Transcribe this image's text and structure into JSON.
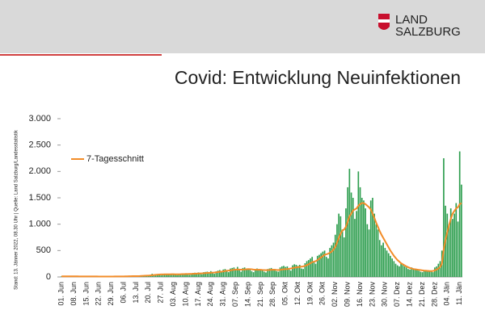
{
  "header": {
    "logo_line1": "LAND",
    "logo_line2": "SALZBURG"
  },
  "source_note": "Stand: 13. Jänner 2022, 08.30 Uhr | Quelle: Land Salzburg/Landesstatistik",
  "chart_data": {
    "type": "bar",
    "title": "Covid: Entwicklung Neuinfektionen",
    "ylim": [
      0,
      3000
    ],
    "yticks": [
      0,
      500,
      {
        "value": 1000,
        "label": "1.000"
      },
      {
        "value": 1500,
        "label": "1.500"
      },
      {
        "value": 2000,
        "label": "2.000"
      },
      {
        "value": 2500,
        "label": "2.500"
      },
      {
        "value": 3000,
        "label": "3.000"
      }
    ],
    "grid": false,
    "legend": "upper left",
    "categories": [
      "01. Jun",
      null,
      null,
      null,
      null,
      null,
      null,
      "08. Jun",
      null,
      null,
      null,
      null,
      null,
      null,
      "15. Jun",
      null,
      null,
      null,
      null,
      null,
      null,
      "22. Jun",
      null,
      null,
      null,
      null,
      null,
      null,
      "29. Jun",
      null,
      null,
      null,
      null,
      null,
      null,
      "06. Jul",
      null,
      null,
      null,
      null,
      null,
      null,
      "13. Jul",
      null,
      null,
      null,
      null,
      null,
      null,
      "20. Jul",
      null,
      null,
      null,
      null,
      null,
      null,
      "27. Jul",
      null,
      null,
      null,
      null,
      null,
      null,
      "03. Aug",
      null,
      null,
      null,
      null,
      null,
      null,
      "10. Aug",
      null,
      null,
      null,
      null,
      null,
      null,
      "17. Aug",
      null,
      null,
      null,
      null,
      null,
      null,
      "24. Aug",
      null,
      null,
      null,
      null,
      null,
      null,
      "31. Aug",
      null,
      null,
      null,
      null,
      null,
      null,
      "07. Sep",
      null,
      null,
      null,
      null,
      null,
      null,
      "14. Sep",
      null,
      null,
      null,
      null,
      null,
      null,
      "21. Sep",
      null,
      null,
      null,
      null,
      null,
      null,
      "28. Sep",
      null,
      null,
      null,
      null,
      null,
      null,
      "05. Okt",
      null,
      null,
      null,
      null,
      null,
      null,
      "12. Okt",
      null,
      null,
      null,
      null,
      null,
      null,
      "19. Okt",
      null,
      null,
      null,
      null,
      null,
      null,
      "26. Okt",
      null,
      null,
      null,
      null,
      null,
      null,
      "02. Nov",
      null,
      null,
      null,
      null,
      null,
      null,
      "09. Nov",
      null,
      null,
      null,
      null,
      null,
      null,
      "16. Nov",
      null,
      null,
      null,
      null,
      null,
      null,
      "23. Nov",
      null,
      null,
      null,
      null,
      null,
      null,
      "30. Nov",
      null,
      null,
      null,
      null,
      null,
      null,
      "07. Dez",
      null,
      null,
      null,
      null,
      null,
      null,
      "14. Dez",
      null,
      null,
      null,
      null,
      null,
      null,
      "21. Dez",
      null,
      null,
      null,
      null,
      null,
      null,
      "28. Dez",
      null,
      null,
      null,
      null,
      null,
      null,
      "04. Jän",
      null,
      null,
      null,
      null,
      null,
      null,
      "11. Jän",
      null
    ],
    "series": [
      {
        "type": "bar",
        "color": "#2e9e4f",
        "values": [
          12,
          15,
          10,
          8,
          14,
          11,
          6,
          10,
          13,
          9,
          12,
          8,
          5,
          4,
          9,
          12,
          10,
          8,
          11,
          6,
          4,
          8,
          10,
          9,
          7,
          12,
          5,
          3,
          9,
          11,
          10,
          14,
          12,
          15,
          8,
          6,
          12,
          18,
          15,
          20,
          16,
          10,
          8,
          20,
          25,
          30,
          28,
          35,
          20,
          15,
          40,
          60,
          45,
          50,
          55,
          38,
          30,
          55,
          60,
          50,
          45,
          48,
          55,
          60,
          42,
          35,
          58,
          62,
          65,
          55,
          70,
          45,
          40,
          68,
          75,
          80,
          70,
          85,
          55,
          50,
          90,
          95,
          100,
          85,
          110,
          75,
          60,
          105,
          120,
          130,
          110,
          140,
          150,
          120,
          90,
          160,
          170,
          180,
          150,
          190,
          130,
          100,
          170,
          180,
          160,
          140,
          150,
          110,
          90,
          140,
          160,
          150,
          130,
          140,
          100,
          85,
          150,
          160,
          170,
          140,
          150,
          110,
          100,
          180,
          200,
          210,
          190,
          200,
          140,
          120,
          220,
          240,
          230,
          210,
          230,
          160,
          150,
          260,
          300,
          320,
          350,
          380,
          280,
          250,
          400,
          420,
          450,
          480,
          500,
          380,
          350,
          550,
          600,
          650,
          800,
          1000,
          1200,
          1150,
          900,
          750,
          1300,
          1700,
          2050,
          1600,
          1500,
          1100,
          1250,
          2000,
          1700,
          1500,
          1450,
          1300,
          1000,
          900,
          1450,
          1500,
          1200,
          1000,
          900,
          700,
          600,
          650,
          550,
          500,
          450,
          400,
          350,
          300,
          250,
          220,
          200,
          250,
          230,
          200,
          180,
          150,
          140,
          180,
          160,
          150,
          130,
          120,
          100,
          90,
          110,
          120,
          130,
          120,
          100,
          90,
          180,
          200,
          250,
          300,
          500,
          2250,
          1350,
          1200,
          1000,
          1300,
          1100,
          1200,
          1400,
          1050,
          2380,
          1750
        ]
      },
      {
        "type": "line",
        "name": "7-Tagesschnitt",
        "color": "#f28c28",
        "values": [
          11,
          11,
          11,
          11,
          11,
          11,
          11,
          11,
          11,
          11,
          10,
          10,
          10,
          10,
          9,
          9,
          9,
          9,
          9,
          9,
          9,
          8,
          8,
          8,
          8,
          8,
          8,
          8,
          8,
          8,
          9,
          9,
          10,
          10,
          10,
          10,
          11,
          12,
          13,
          14,
          15,
          15,
          15,
          16,
          17,
          19,
          21,
          23,
          25,
          26,
          29,
          33,
          36,
          40,
          43,
          46,
          48,
          48,
          50,
          50,
          49,
          50,
          51,
          51,
          50,
          49,
          50,
          51,
          53,
          54,
          56,
          56,
          57,
          58,
          60,
          62,
          64,
          66,
          67,
          68,
          70,
          73,
          76,
          78,
          81,
          83,
          85,
          88,
          92,
          97,
          100,
          106,
          112,
          118,
          120,
          125,
          130,
          135,
          140,
          142,
          140,
          138,
          140,
          142,
          145,
          150,
          148,
          145,
          140,
          138,
          135,
          135,
          135,
          132,
          130,
          128,
          130,
          132,
          135,
          137,
          135,
          133,
          130,
          135,
          140,
          145,
          148,
          150,
          155,
          160,
          168,
          175,
          180,
          185,
          190,
          195,
          200,
          210,
          225,
          240,
          260,
          280,
          290,
          300,
          320,
          345,
          370,
          395,
          420,
          430,
          440,
          460,
          480,
          520,
          570,
          650,
          740,
          820,
          880,
          900,
          950,
          1050,
          1150,
          1200,
          1260,
          1280,
          1300,
          1350,
          1380,
          1400,
          1400,
          1380,
          1350,
          1320,
          1280,
          1200,
          1120,
          1030,
          950,
          870,
          800,
          740,
          680,
          620,
          560,
          500,
          450,
          400,
          360,
          320,
          290,
          260,
          240,
          220,
          200,
          185,
          170,
          160,
          150,
          145,
          140,
          135,
          130,
          125,
          120,
          118,
          115,
          112,
          110,
          112,
          125,
          140,
          160,
          190,
          250,
          520,
          700,
          850,
          980,
          1100,
          1200,
          1250,
          1300,
          1320,
          1380,
          1400
        ]
      }
    ]
  }
}
